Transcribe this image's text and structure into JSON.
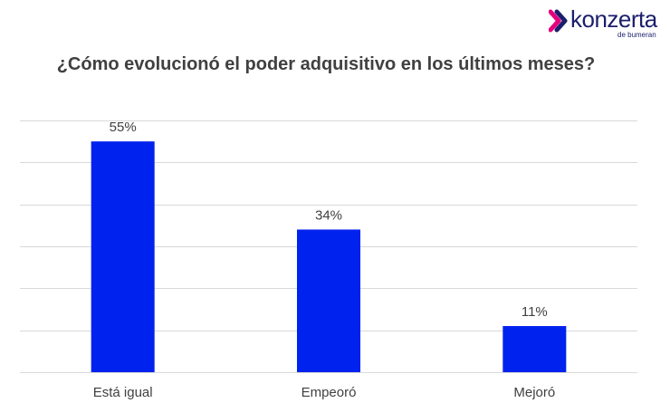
{
  "brand": {
    "name": "konzerta",
    "sub": "de bumeran",
    "colors": {
      "mark_dark": "#1b1f6b",
      "mark_accent": "#e6007e"
    }
  },
  "chart_data": {
    "type": "bar",
    "title": "¿Cómo evolucionó el poder adquisitivo en los últimos meses?",
    "categories": [
      "Está igual",
      "Empeoró",
      "Mejoró"
    ],
    "values": [
      55,
      34,
      11
    ],
    "value_labels": [
      "55%",
      "34%",
      "11%"
    ],
    "xlabel": "",
    "ylabel": "",
    "ylim": [
      0,
      60
    ],
    "grid": true,
    "bar_color": "#0022ee",
    "gridline_color": "#d9d9d9"
  }
}
